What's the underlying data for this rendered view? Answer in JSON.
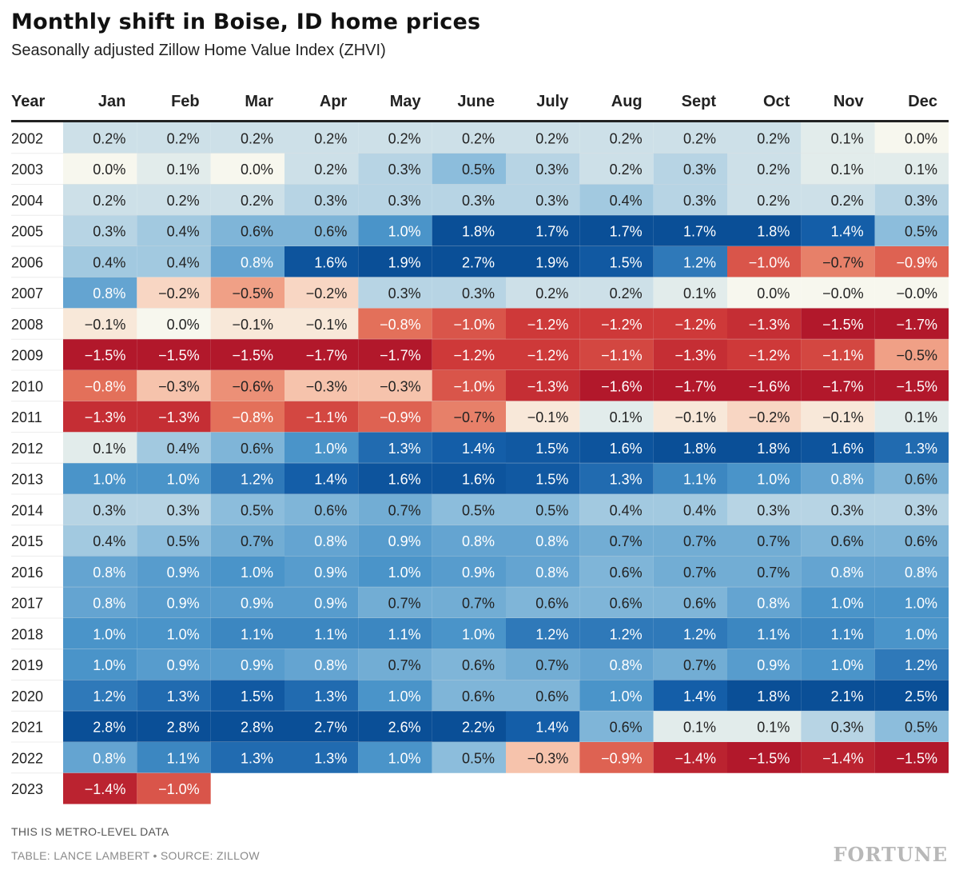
{
  "title": "Monthly shift in Boise, ID home prices",
  "subtitle": "Seasonally adjusted Zillow Home Value Index (ZHVI)",
  "note": "THIS IS METRO-LEVEL DATA",
  "credit": "TABLE: LANCE LAMBERT • SOURCE: ZILLOW",
  "brand": "FORTUNE",
  "colors": {
    "negative_strong": "#b2182b",
    "neutral": "#f7f7ee",
    "positive_strong": "#0a4f97"
  },
  "chart_data": {
    "type": "heatmap",
    "row_header": "Year",
    "columns": [
      "Jan",
      "Feb",
      "Mar",
      "Apr",
      "May",
      "June",
      "July",
      "Aug",
      "Sept",
      "Oct",
      "Nov",
      "Dec"
    ],
    "rows": [
      {
        "year": "2002",
        "values": [
          "0.2%",
          "0.2%",
          "0.2%",
          "0.2%",
          "0.2%",
          "0.2%",
          "0.2%",
          "0.2%",
          "0.2%",
          "0.2%",
          "0.1%",
          "0.0%"
        ]
      },
      {
        "year": "2003",
        "values": [
          "0.0%",
          "0.1%",
          "0.0%",
          "0.2%",
          "0.3%",
          "0.5%",
          "0.3%",
          "0.2%",
          "0.3%",
          "0.2%",
          "0.1%",
          "0.1%"
        ]
      },
      {
        "year": "2004",
        "values": [
          "0.2%",
          "0.2%",
          "0.2%",
          "0.3%",
          "0.3%",
          "0.3%",
          "0.3%",
          "0.4%",
          "0.3%",
          "0.2%",
          "0.2%",
          "0.3%"
        ]
      },
      {
        "year": "2005",
        "values": [
          "0.3%",
          "0.4%",
          "0.6%",
          "0.6%",
          "1.0%",
          "1.8%",
          "1.7%",
          "1.7%",
          "1.7%",
          "1.8%",
          "1.4%",
          "0.5%"
        ]
      },
      {
        "year": "2006",
        "values": [
          "0.4%",
          "0.4%",
          "0.8%",
          "1.6%",
          "1.9%",
          "2.7%",
          "1.9%",
          "1.5%",
          "1.2%",
          "−1.0%",
          "−0.7%",
          "−0.9%"
        ]
      },
      {
        "year": "2007",
        "values": [
          "0.8%",
          "−0.2%",
          "−0.5%",
          "−0.2%",
          "0.3%",
          "0.3%",
          "0.2%",
          "0.2%",
          "0.1%",
          "0.0%",
          "−0.0%",
          "−0.0%"
        ]
      },
      {
        "year": "2008",
        "values": [
          "−0.1%",
          "0.0%",
          "−0.1%",
          "−0.1%",
          "−0.8%",
          "−1.0%",
          "−1.2%",
          "−1.2%",
          "−1.2%",
          "−1.3%",
          "−1.5%",
          "−1.7%"
        ]
      },
      {
        "year": "2009",
        "values": [
          "−1.5%",
          "−1.5%",
          "−1.5%",
          "−1.7%",
          "−1.7%",
          "−1.2%",
          "−1.2%",
          "−1.1%",
          "−1.3%",
          "−1.2%",
          "−1.1%",
          "−0.5%"
        ]
      },
      {
        "year": "2010",
        "values": [
          "−0.8%",
          "−0.3%",
          "−0.6%",
          "−0.3%",
          "−0.3%",
          "−1.0%",
          "−1.3%",
          "−1.6%",
          "−1.7%",
          "−1.6%",
          "−1.7%",
          "−1.5%"
        ]
      },
      {
        "year": "2011",
        "values": [
          "−1.3%",
          "−1.3%",
          "−0.8%",
          "−1.1%",
          "−0.9%",
          "−0.7%",
          "−0.1%",
          "0.1%",
          "−0.1%",
          "−0.2%",
          "−0.1%",
          "0.1%"
        ]
      },
      {
        "year": "2012",
        "values": [
          "0.1%",
          "0.4%",
          "0.6%",
          "1.0%",
          "1.3%",
          "1.4%",
          "1.5%",
          "1.6%",
          "1.8%",
          "1.8%",
          "1.6%",
          "1.3%"
        ]
      },
      {
        "year": "2013",
        "values": [
          "1.0%",
          "1.0%",
          "1.2%",
          "1.4%",
          "1.6%",
          "1.6%",
          "1.5%",
          "1.3%",
          "1.1%",
          "1.0%",
          "0.8%",
          "0.6%"
        ]
      },
      {
        "year": "2014",
        "values": [
          "0.3%",
          "0.3%",
          "0.5%",
          "0.6%",
          "0.7%",
          "0.5%",
          "0.5%",
          "0.4%",
          "0.4%",
          "0.3%",
          "0.3%",
          "0.3%"
        ]
      },
      {
        "year": "2015",
        "values": [
          "0.4%",
          "0.5%",
          "0.7%",
          "0.8%",
          "0.9%",
          "0.8%",
          "0.8%",
          "0.7%",
          "0.7%",
          "0.7%",
          "0.6%",
          "0.6%"
        ]
      },
      {
        "year": "2016",
        "values": [
          "0.8%",
          "0.9%",
          "1.0%",
          "0.9%",
          "1.0%",
          "0.9%",
          "0.8%",
          "0.6%",
          "0.7%",
          "0.7%",
          "0.8%",
          "0.8%"
        ]
      },
      {
        "year": "2017",
        "values": [
          "0.8%",
          "0.9%",
          "0.9%",
          "0.9%",
          "0.7%",
          "0.7%",
          "0.6%",
          "0.6%",
          "0.6%",
          "0.8%",
          "1.0%",
          "1.0%"
        ]
      },
      {
        "year": "2018",
        "values": [
          "1.0%",
          "1.0%",
          "1.1%",
          "1.1%",
          "1.1%",
          "1.0%",
          "1.2%",
          "1.2%",
          "1.2%",
          "1.1%",
          "1.1%",
          "1.0%"
        ]
      },
      {
        "year": "2019",
        "values": [
          "1.0%",
          "0.9%",
          "0.9%",
          "0.8%",
          "0.7%",
          "0.6%",
          "0.7%",
          "0.8%",
          "0.7%",
          "0.9%",
          "1.0%",
          "1.2%"
        ]
      },
      {
        "year": "2020",
        "values": [
          "1.2%",
          "1.3%",
          "1.5%",
          "1.3%",
          "1.0%",
          "0.6%",
          "0.6%",
          "1.0%",
          "1.4%",
          "1.8%",
          "2.1%",
          "2.5%"
        ]
      },
      {
        "year": "2021",
        "values": [
          "2.8%",
          "2.8%",
          "2.8%",
          "2.7%",
          "2.6%",
          "2.2%",
          "1.4%",
          "0.6%",
          "0.1%",
          "0.1%",
          "0.3%",
          "0.5%"
        ]
      },
      {
        "year": "2022",
        "values": [
          "0.8%",
          "1.1%",
          "1.3%",
          "1.3%",
          "1.0%",
          "0.5%",
          "−0.3%",
          "−0.9%",
          "−1.4%",
          "−1.5%",
          "−1.4%",
          "−1.5%"
        ]
      },
      {
        "year": "2023",
        "values": [
          "−1.4%",
          "−1.0%"
        ]
      }
    ]
  }
}
